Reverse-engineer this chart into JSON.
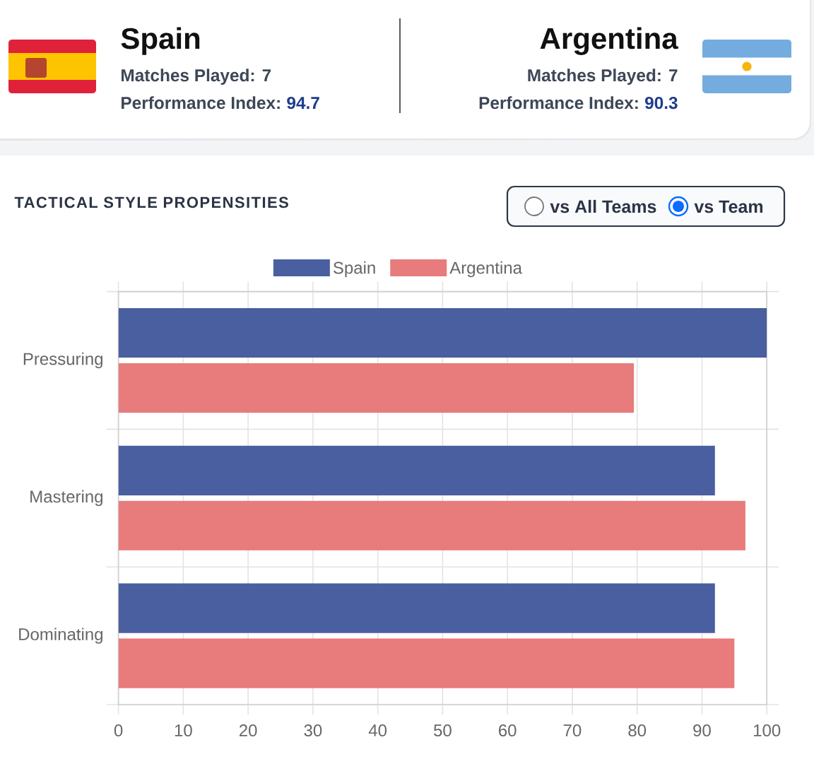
{
  "chart_data": {
    "type": "bar",
    "orientation": "horizontal",
    "title": "TACTICAL STYLE PROPENSITIES",
    "categories": [
      "Pressuring",
      "Mastering",
      "Dominating"
    ],
    "series": [
      {
        "name": "Spain",
        "color": "#4a5f9f",
        "values": [
          100,
          92,
          92
        ]
      },
      {
        "name": "Argentina",
        "color": "#e87b7b",
        "values": [
          79.5,
          96.7,
          95
        ]
      }
    ],
    "xlim": [
      0,
      100
    ],
    "xticks": [
      0,
      10,
      20,
      30,
      40,
      50,
      60,
      70,
      80,
      90,
      100
    ],
    "grid": true,
    "legend": "top",
    "annotations": [
      "Spain",
      "Matches Played: 7",
      "Performance Index:",
      "94.7",
      "Argentina",
      "Matches Played: 7",
      "Performance Index:",
      "90.3",
      "vs All Teams",
      "vs Team"
    ]
  }
}
